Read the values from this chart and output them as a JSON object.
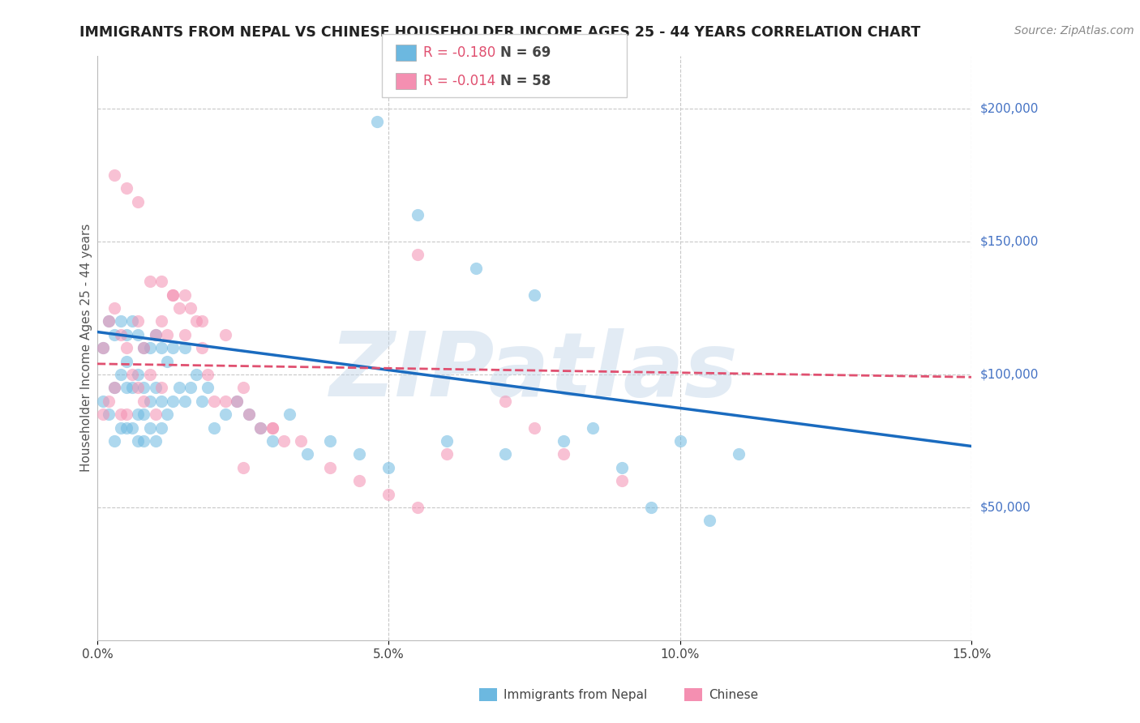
{
  "title": "IMMIGRANTS FROM NEPAL VS CHINESE HOUSEHOLDER INCOME AGES 25 - 44 YEARS CORRELATION CHART",
  "source": "Source: ZipAtlas.com",
  "ylabel": "Householder Income Ages 25 - 44 years",
  "xlim": [
    0.0,
    0.15
  ],
  "ylim": [
    0,
    220000
  ],
  "yticks": [
    50000,
    100000,
    150000,
    200000
  ],
  "ytick_labels": [
    "$50,000",
    "$100,000",
    "$150,000",
    "$200,000"
  ],
  "xticks": [
    0.0,
    0.05,
    0.1,
    0.15
  ],
  "xtick_labels": [
    "0.0%",
    "5.0%",
    "10.0%",
    "15.0%"
  ],
  "nepal_color": "#6cb8e0",
  "chinese_color": "#f48fb1",
  "nepal_R": -0.18,
  "nepal_N": 69,
  "chinese_R": -0.014,
  "chinese_N": 58,
  "nepal_scatter_x": [
    0.001,
    0.001,
    0.002,
    0.002,
    0.003,
    0.003,
    0.003,
    0.004,
    0.004,
    0.004,
    0.005,
    0.005,
    0.005,
    0.005,
    0.006,
    0.006,
    0.006,
    0.007,
    0.007,
    0.007,
    0.007,
    0.008,
    0.008,
    0.008,
    0.008,
    0.009,
    0.009,
    0.009,
    0.01,
    0.01,
    0.01,
    0.011,
    0.011,
    0.011,
    0.012,
    0.012,
    0.013,
    0.013,
    0.014,
    0.015,
    0.015,
    0.016,
    0.017,
    0.018,
    0.019,
    0.02,
    0.022,
    0.024,
    0.026,
    0.028,
    0.03,
    0.033,
    0.036,
    0.04,
    0.045,
    0.05,
    0.06,
    0.07,
    0.08,
    0.09,
    0.1,
    0.11,
    0.048,
    0.055,
    0.065,
    0.075,
    0.085,
    0.095,
    0.105
  ],
  "nepal_scatter_y": [
    110000,
    90000,
    120000,
    85000,
    115000,
    95000,
    75000,
    120000,
    100000,
    80000,
    115000,
    95000,
    80000,
    105000,
    120000,
    95000,
    80000,
    115000,
    100000,
    85000,
    75000,
    110000,
    95000,
    85000,
    75000,
    110000,
    90000,
    80000,
    115000,
    95000,
    75000,
    110000,
    90000,
    80000,
    105000,
    85000,
    110000,
    90000,
    95000,
    110000,
    90000,
    95000,
    100000,
    90000,
    95000,
    80000,
    85000,
    90000,
    85000,
    80000,
    75000,
    85000,
    70000,
    75000,
    70000,
    65000,
    75000,
    70000,
    75000,
    65000,
    75000,
    70000,
    195000,
    160000,
    140000,
    130000,
    80000,
    50000,
    45000
  ],
  "chinese_scatter_x": [
    0.001,
    0.001,
    0.002,
    0.002,
    0.003,
    0.003,
    0.004,
    0.004,
    0.005,
    0.005,
    0.006,
    0.007,
    0.007,
    0.008,
    0.008,
    0.009,
    0.01,
    0.01,
    0.011,
    0.011,
    0.012,
    0.013,
    0.014,
    0.015,
    0.016,
    0.017,
    0.018,
    0.019,
    0.02,
    0.022,
    0.024,
    0.026,
    0.028,
    0.03,
    0.032,
    0.035,
    0.04,
    0.045,
    0.05,
    0.055,
    0.003,
    0.005,
    0.007,
    0.009,
    0.011,
    0.013,
    0.015,
    0.018,
    0.022,
    0.025,
    0.03,
    0.055,
    0.06,
    0.07,
    0.075,
    0.08,
    0.09,
    0.025
  ],
  "chinese_scatter_y": [
    110000,
    85000,
    120000,
    90000,
    125000,
    95000,
    115000,
    85000,
    110000,
    85000,
    100000,
    120000,
    95000,
    110000,
    90000,
    100000,
    115000,
    85000,
    120000,
    95000,
    115000,
    130000,
    125000,
    115000,
    125000,
    120000,
    110000,
    100000,
    90000,
    90000,
    90000,
    85000,
    80000,
    80000,
    75000,
    75000,
    65000,
    60000,
    55000,
    145000,
    175000,
    170000,
    165000,
    135000,
    135000,
    130000,
    130000,
    120000,
    115000,
    95000,
    80000,
    50000,
    70000,
    90000,
    80000,
    70000,
    60000,
    65000
  ],
  "nepal_trend_x": [
    0.0,
    0.15
  ],
  "nepal_trend_y": [
    116000,
    73000
  ],
  "chinese_trend_x": [
    0.0,
    0.15
  ],
  "chinese_trend_y": [
    104000,
    99000
  ],
  "nepal_trend_color": "#1a6bbf",
  "chinese_trend_color": "#e05070",
  "background_color": "#ffffff",
  "grid_color": "#c8c8c8",
  "right_label_color": "#4472c4",
  "title_fontsize": 12.5,
  "axis_label_fontsize": 11,
  "tick_fontsize": 11,
  "legend_fontsize": 12,
  "watermark_text": "ZIPatlas",
  "watermark_color": "#c0d4e8",
  "watermark_alpha": 0.45
}
